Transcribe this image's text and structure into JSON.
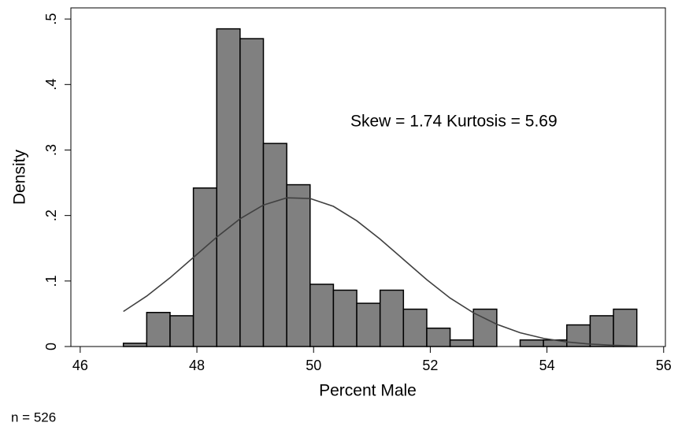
{
  "chart_data": {
    "type": "histogram",
    "xlabel": "Percent Male",
    "ylabel": "Density",
    "annotation": "Skew = 1.74  Kurtosis = 5.69",
    "note": "n = 526",
    "bins": [
      46.74,
      47.14,
      47.54,
      47.94,
      48.34,
      48.74,
      49.14,
      49.54,
      49.94,
      50.34,
      50.74,
      51.14,
      51.54,
      51.94,
      52.34,
      52.74,
      53.14,
      53.54,
      53.94,
      54.34,
      54.74,
      55.14,
      55.54
    ],
    "values": [
      0.005,
      0.052,
      0.047,
      0.242,
      0.485,
      0.47,
      0.31,
      0.247,
      0.095,
      0.086,
      0.066,
      0.086,
      0.057,
      0.028,
      0.01,
      0.057,
      0,
      0.01,
      0.01,
      0.033,
      0.047,
      0.057
    ],
    "color": "#808080",
    "curve": {
      "color": "#404040",
      "x": [
        46.74,
        47.14,
        47.54,
        47.94,
        48.34,
        48.74,
        49.14,
        49.54,
        49.94,
        50.34,
        50.74,
        51.14,
        51.54,
        51.94,
        52.34,
        52.74,
        53.14,
        53.54,
        53.94,
        54.34,
        54.74,
        55.14,
        55.54
      ],
      "y": [
        0.0535,
        0.077,
        0.105,
        0.136,
        0.167,
        0.195,
        0.216,
        0.227,
        0.226,
        0.214,
        0.192,
        0.164,
        0.133,
        0.102,
        0.074,
        0.0515,
        0.034,
        0.021,
        0.0125,
        0.007,
        0.0037,
        0.0019,
        0.0009
      ]
    },
    "xlim": [
      45.84,
      56.03
    ],
    "xticks": [
      46,
      48,
      50,
      52,
      54,
      56
    ],
    "ylim": [
      0,
      0.517
    ],
    "yticks": [
      0,
      {
        "value": 0.1,
        "label": ".1"
      },
      {
        "value": 0.2,
        "label": ".2"
      },
      {
        "value": 0.3,
        "label": ".3"
      },
      {
        "value": 0.4,
        "label": ".4"
      },
      {
        "value": 0.5,
        "label": ".5"
      }
    ]
  }
}
